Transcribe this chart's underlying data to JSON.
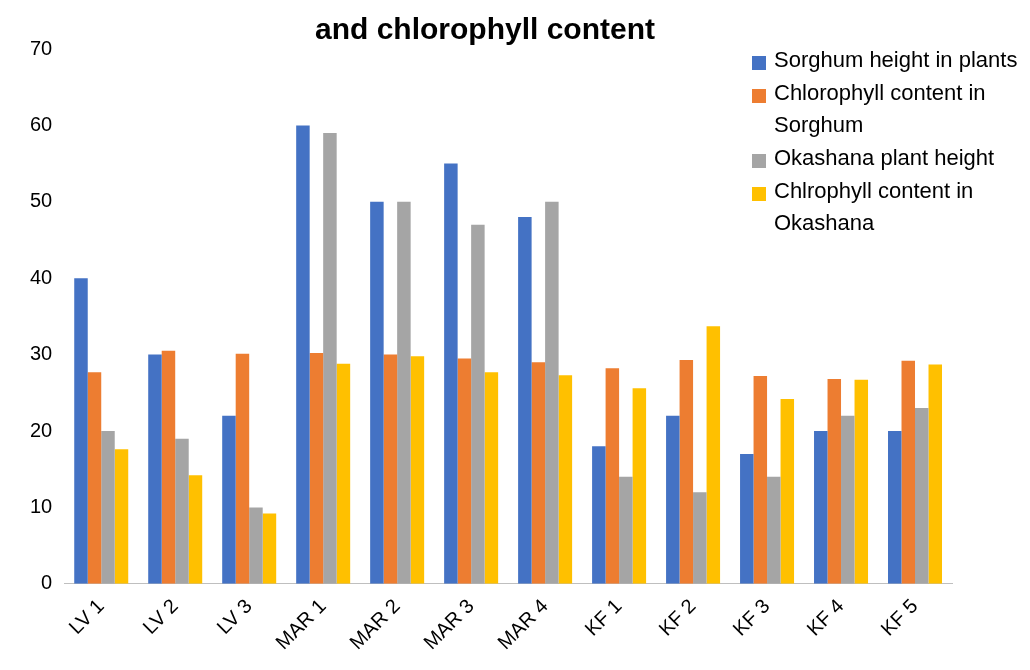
{
  "chart_data": {
    "type": "bar",
    "title": "and chlorophyll content",
    "categories": [
      "LV 1",
      "LV 2",
      "LV 3",
      "MAR 1",
      "MAR 2",
      "MAR 3",
      "MAR 4",
      "KF 1",
      "KF 2",
      "KF 3",
      "KF 4",
      "KF 5"
    ],
    "series": [
      {
        "name": "Sorghum height in plants",
        "color": "#4472c4",
        "values": [
          40,
          30,
          22,
          60,
          50,
          55,
          48,
          18,
          22,
          17,
          20,
          20
        ]
      },
      {
        "name": "Chlorophyll content in Sorghum",
        "color": "#ed7d31",
        "values": [
          27.7,
          30.5,
          30.1,
          30.2,
          30.0,
          29.5,
          29.0,
          28.2,
          29.3,
          27.2,
          26.8,
          29.2
        ]
      },
      {
        "name": "Okashana plant height",
        "color": "#a5a5a5",
        "values": [
          20,
          19,
          10,
          59,
          50,
          47,
          50,
          14,
          12,
          14,
          22,
          23
        ]
      },
      {
        "name": "Chlrophyll content in Okashana",
        "color": "#ffc000",
        "values": [
          17.6,
          14.2,
          9.2,
          28.8,
          29.8,
          27.7,
          27.3,
          25.6,
          33.7,
          24.2,
          26.7,
          28.7
        ]
      }
    ],
    "ylim": [
      0,
      70
    ],
    "yticks": [
      0,
      10,
      20,
      30,
      40,
      50,
      60,
      70
    ],
    "grid": false,
    "legend": "top right"
  }
}
